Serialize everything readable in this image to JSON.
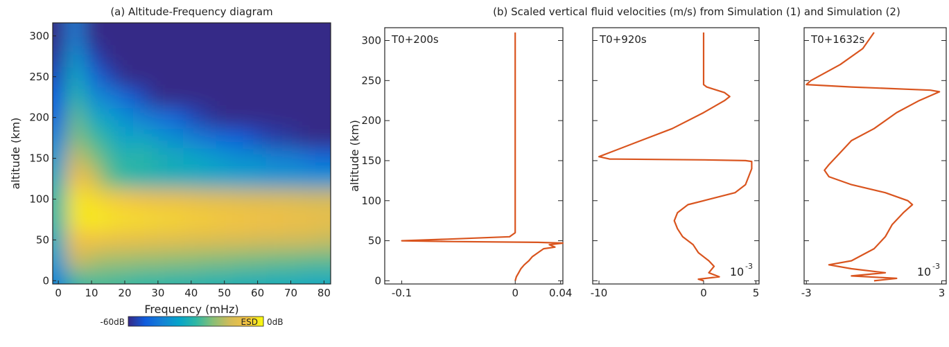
{
  "chart_data": [
    {
      "type": "heatmap",
      "title": "(a) Altitude-Frequency diagram",
      "xlabel": "Frequency (mHz)",
      "ylabel": "altitude (km)",
      "x": [
        0,
        5,
        10,
        15,
        20,
        25,
        30,
        35,
        40,
        45,
        50,
        55,
        60,
        65,
        70,
        75,
        80
      ],
      "y": [
        0,
        25,
        50,
        75,
        100,
        125,
        150,
        175,
        200,
        225,
        250,
        275,
        300
      ],
      "z": [
        [
          -45,
          -30,
          -28,
          -28,
          -29,
          -30,
          -30,
          -31,
          -31,
          -32,
          -32,
          -33,
          -33,
          -34,
          -34,
          -35,
          -35
        ],
        [
          -40,
          -15,
          -18,
          -20,
          -20,
          -21,
          -21,
          -22,
          -22,
          -23,
          -23,
          -24,
          -24,
          -25,
          -25,
          -26,
          -26
        ],
        [
          -35,
          -8,
          -8,
          -9,
          -10,
          -10,
          -11,
          -11,
          -12,
          -12,
          -13,
          -13,
          -14,
          -14,
          -15,
          -15,
          -16
        ],
        [
          -30,
          -3,
          -2,
          -3,
          -4,
          -4,
          -5,
          -5,
          -6,
          -6,
          -7,
          -7,
          -8,
          -8,
          -9,
          -9,
          -10
        ],
        [
          -30,
          -3,
          -4,
          -6,
          -7,
          -8,
          -9,
          -9,
          -10,
          -11,
          -11,
          -12,
          -12,
          -13,
          -13,
          -14,
          -14
        ],
        [
          -35,
          -8,
          -12,
          -25,
          -30,
          -32,
          -33,
          -34,
          -35,
          -36,
          -37,
          -38,
          -39,
          -40,
          -40,
          -41,
          -41
        ],
        [
          -40,
          -15,
          -22,
          -28,
          -32,
          -30,
          -33,
          -35,
          -36,
          -38,
          -40,
          -42,
          -42,
          -45,
          -45,
          -48,
          -50
        ],
        [
          -45,
          -22,
          -28,
          -32,
          -38,
          -36,
          -40,
          -42,
          -45,
          -48,
          -50,
          -52,
          -55,
          -57,
          -58,
          -60,
          -60
        ],
        [
          -50,
          -25,
          -35,
          -38,
          -42,
          -45,
          -48,
          -50,
          -55,
          -58,
          -60,
          -60,
          -60,
          -60,
          -60,
          -60,
          -60
        ],
        [
          -52,
          -30,
          -42,
          -45,
          -50,
          -55,
          -60,
          -60,
          -60,
          -60,
          -60,
          -60,
          -60,
          -60,
          -60,
          -60,
          -60
        ],
        [
          -55,
          -35,
          -48,
          -55,
          -60,
          -60,
          -60,
          -60,
          -60,
          -60,
          -60,
          -60,
          -60,
          -60,
          -60,
          -60,
          -60
        ],
        [
          -58,
          -40,
          -55,
          -60,
          -60,
          -60,
          -60,
          -60,
          -60,
          -60,
          -60,
          -60,
          -60,
          -60,
          -60,
          -60,
          -60
        ],
        [
          -60,
          -45,
          -60,
          -60,
          -60,
          -60,
          -60,
          -60,
          -60,
          -60,
          -60,
          -60,
          -60,
          -60,
          -60,
          -60,
          -60
        ]
      ],
      "xlim": [
        -1.7,
        82
      ],
      "ylim": [
        -4,
        316
      ],
      "xticks": [
        0,
        10,
        20,
        30,
        40,
        50,
        60,
        70,
        80
      ],
      "yticks": [
        0,
        50,
        100,
        150,
        200,
        250,
        300
      ],
      "zlim": [
        -60,
        0
      ],
      "colormap": [
        "#352a87",
        "#0f5cdd",
        "#1481d6",
        "#06a4ca",
        "#2eb7a4",
        "#87bf77",
        "#d1bb59",
        "#f5c343",
        "#f9fb0e"
      ],
      "colorbar_ticks": [
        {
          "value": -60,
          "label": "-60dB"
        },
        {
          "value": 0,
          "label": "0dB"
        }
      ],
      "colorbar_label": "ESD"
    },
    {
      "type": "profile",
      "title": "(b) Scaled vertical fluid velocities (m/s) from Simulation (1) and Simulation (2)",
      "ylabel": "altitude (km)",
      "annotation": "T0+200s",
      "color": "#d9541e",
      "show_ytick_labels": true,
      "y": [
        310,
        60,
        55,
        52,
        50,
        49,
        48,
        47,
        45,
        42,
        40,
        35,
        30,
        25,
        20,
        15,
        10,
        5,
        0
      ],
      "values": [
        0,
        0,
        -0.005,
        -0.06,
        -0.1,
        -0.06,
        0.02,
        0.042,
        0.03,
        0.035,
        0.025,
        0.02,
        0.015,
        0.012,
        0.008,
        0.005,
        0.003,
        0.001,
        0
      ],
      "xlim": [
        -0.115,
        0.042
      ],
      "ylim": [
        -4,
        316
      ],
      "xticks": [
        -0.1,
        0,
        0.04
      ],
      "yticks": [
        0,
        50,
        100,
        150,
        200,
        250,
        300
      ]
    },
    {
      "type": "profile",
      "annotation": "T0+920s",
      "color": "#d9541e",
      "show_ytick_labels": false,
      "scale_base": "10",
      "scale_exponent": "-3",
      "y": [
        310,
        245,
        242,
        235,
        230,
        225,
        210,
        190,
        175,
        160,
        155,
        152,
        151,
        150,
        149,
        140,
        130,
        120,
        110,
        100,
        95,
        85,
        75,
        65,
        55,
        45,
        35,
        25,
        18,
        10,
        5,
        2,
        0
      ],
      "values": [
        0,
        0,
        0.3,
        2,
        2.5,
        2,
        0,
        -3,
        -6,
        -9,
        -10,
        -9,
        0,
        4,
        4.6,
        4.6,
        4.3,
        4,
        3,
        0,
        -1.5,
        -2.5,
        -2.8,
        -2.5,
        -2,
        -1,
        -0.5,
        0.5,
        1,
        0.5,
        1.5,
        -0.5,
        0
      ],
      "xlim": [
        -10.6,
        5.3
      ],
      "ylim": [
        -4,
        316
      ],
      "xticks": [
        -10,
        0,
        5
      ],
      "yticks": [
        0,
        50,
        100,
        150,
        200,
        250,
        300
      ]
    },
    {
      "type": "profile",
      "annotation": "T0+1632s",
      "color": "#d9541e",
      "show_ytick_labels": false,
      "scale_base": "10",
      "scale_exponent": "-3",
      "y": [
        310,
        290,
        270,
        250,
        245,
        242,
        238,
        236,
        225,
        210,
        190,
        175,
        160,
        145,
        138,
        130,
        120,
        110,
        100,
        95,
        85,
        70,
        55,
        40,
        25,
        20,
        15,
        10,
        6,
        3,
        0
      ],
      "values": [
        0,
        -0.5,
        -1.5,
        -2.8,
        -3,
        -1,
        2.5,
        2.9,
        2,
        1,
        0,
        -1,
        -1.5,
        -2,
        -2.2,
        -2,
        -1,
        0.5,
        1.5,
        1.7,
        1.3,
        0.8,
        0.5,
        0,
        -1,
        -2,
        -1,
        0.5,
        -1,
        1,
        0
      ],
      "xlim": [
        -3.1,
        3.2
      ],
      "ylim": [
        -4,
        316
      ],
      "xticks": [
        -3,
        3
      ],
      "yticks": [
        0,
        50,
        100,
        150,
        200,
        250,
        300
      ]
    }
  ]
}
